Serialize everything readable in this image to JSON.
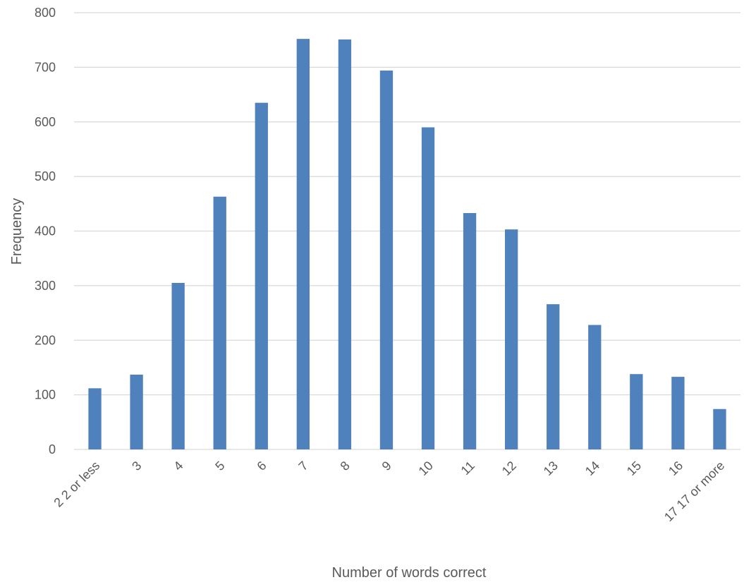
{
  "chart_data": {
    "type": "bar",
    "title": "",
    "xlabel": "Number of words correct",
    "ylabel": "Frequency",
    "categories": [
      "2 2 or less",
      "3",
      "4",
      "5",
      "6",
      "7",
      "8",
      "9",
      "10",
      "11",
      "12",
      "13",
      "14",
      "15",
      "16",
      "17 17 or more"
    ],
    "values": [
      112,
      137,
      305,
      463,
      635,
      752,
      751,
      694,
      590,
      433,
      403,
      266,
      228,
      138,
      133,
      74
    ],
    "ylim": [
      0,
      800
    ],
    "yticks": [
      0,
      100,
      200,
      300,
      400,
      500,
      600,
      700,
      800
    ],
    "grid": true,
    "legend": "none",
    "bar_color": "#4f81bd",
    "grid_color": "#d9d9d9"
  }
}
